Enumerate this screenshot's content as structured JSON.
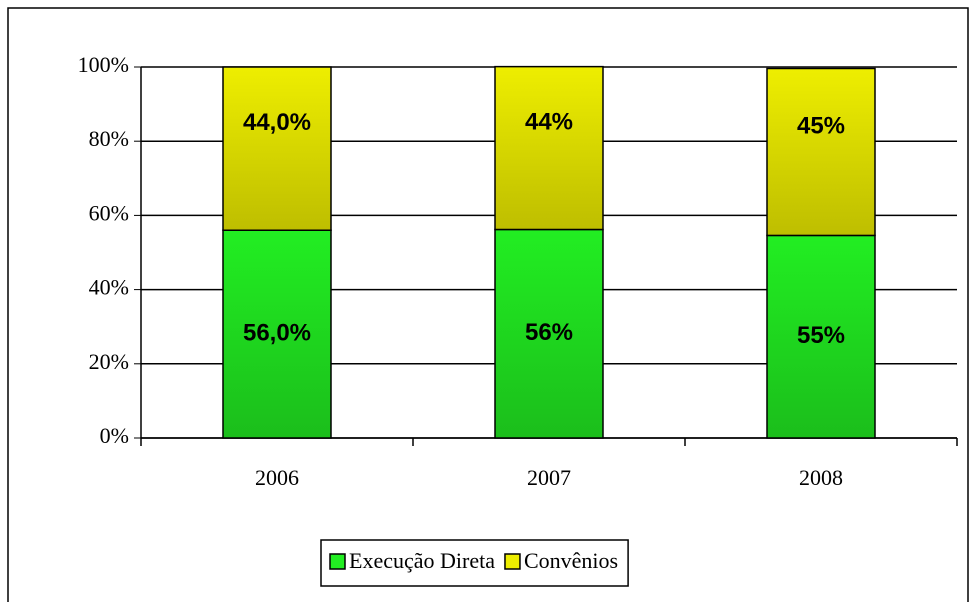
{
  "chart_data": {
    "type": "bar",
    "stacked": true,
    "categories": [
      "2006",
      "2007",
      "2008"
    ],
    "series": [
      {
        "name": "Execução Direta",
        "color": "#22ee22",
        "values": [
          56.0,
          56.2,
          54.6
        ],
        "value_labels": [
          "56,0%",
          "56%",
          "55%"
        ]
      },
      {
        "name": "Convênios",
        "color": "#eeee00",
        "values": [
          44.0,
          43.9,
          45.0
        ],
        "value_labels": [
          "44,0%",
          "44%",
          "45%"
        ]
      }
    ],
    "ylim": [
      0,
      100
    ],
    "yticks": [
      {
        "value": 0,
        "label": "0%"
      },
      {
        "value": 20,
        "label": "20%"
      },
      {
        "value": 40,
        "label": "40%"
      },
      {
        "value": 60,
        "label": "60%"
      },
      {
        "value": 80,
        "label": "80%"
      },
      {
        "value": 100,
        "label": "100%"
      }
    ],
    "grid": true,
    "legend": "bottom"
  }
}
